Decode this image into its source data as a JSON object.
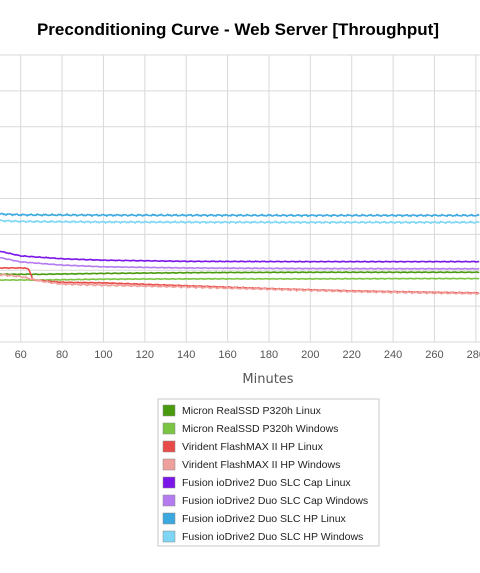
{
  "chart_data": {
    "type": "line",
    "title": "Preconditioning Curve - Web Server [Throughput]",
    "xlabel": "Minutes",
    "ylabel": "",
    "x_tick_labels": [
      "60",
      "80",
      "100",
      "120",
      "140",
      "160",
      "180",
      "200",
      "220",
      "240",
      "260",
      "280"
    ],
    "xlim": [
      50,
      282
    ],
    "ylim": [
      0,
      100
    ],
    "grid": true,
    "legend_position": "bottom",
    "series": [
      {
        "name": "Micron RealSSD P320h Linux",
        "color": "#4a9a10",
        "points": [
          [
            50,
            23.6
          ],
          [
            70,
            23.6
          ],
          [
            100,
            23.9
          ],
          [
            150,
            24.2
          ],
          [
            200,
            24.3
          ],
          [
            250,
            24.3
          ],
          [
            282,
            24.3
          ]
        ]
      },
      {
        "name": "Micron RealSSD P320h Windows",
        "color": "#7cc544",
        "points": [
          [
            50,
            21.6
          ],
          [
            70,
            21.6
          ],
          [
            100,
            21.9
          ],
          [
            150,
            22.0
          ],
          [
            200,
            22.0
          ],
          [
            250,
            22.1
          ],
          [
            282,
            22.1
          ]
        ]
      },
      {
        "name": "Virident FlashMAX II HP Linux",
        "color": "#e84c48",
        "points": [
          [
            50,
            25.8
          ],
          [
            62,
            25.8
          ],
          [
            64,
            25.3
          ],
          [
            66,
            21.6
          ],
          [
            80,
            20.8
          ],
          [
            100,
            20.6
          ],
          [
            140,
            19.6
          ],
          [
            180,
            18.6
          ],
          [
            220,
            17.8
          ],
          [
            260,
            17.3
          ],
          [
            282,
            17.1
          ]
        ]
      },
      {
        "name": "Virident FlashMAX II HP Windows",
        "color": "#f0a09c",
        "points": [
          [
            50,
            23.5
          ],
          [
            60,
            22.8
          ],
          [
            70,
            21.2
          ],
          [
            80,
            20.2
          ],
          [
            100,
            19.8
          ],
          [
            140,
            19.2
          ],
          [
            180,
            18.4
          ],
          [
            220,
            17.6
          ],
          [
            260,
            17.1
          ],
          [
            282,
            16.9
          ]
        ]
      },
      {
        "name": "Fusion ioDrive2 Duo SLC Cap Linux",
        "color": "#7a16e8",
        "points": [
          [
            50,
            31.6
          ],
          [
            60,
            30.0
          ],
          [
            80,
            29.0
          ],
          [
            100,
            28.5
          ],
          [
            140,
            28.1
          ],
          [
            200,
            28.0
          ],
          [
            282,
            28.0
          ]
        ]
      },
      {
        "name": "Fusion ioDrive2 Duo SLC Cap Windows",
        "color": "#b57cf0",
        "points": [
          [
            50,
            29.4
          ],
          [
            60,
            27.9
          ],
          [
            80,
            26.8
          ],
          [
            100,
            26.2
          ],
          [
            140,
            25.8
          ],
          [
            200,
            25.6
          ],
          [
            282,
            25.5
          ]
        ]
      },
      {
        "name": "Fusion ioDrive2 Duo SLC HP Linux",
        "color": "#3ba9e0",
        "points": [
          [
            50,
            44.6
          ],
          [
            60,
            44.3
          ],
          [
            100,
            44.2
          ],
          [
            200,
            44.1
          ],
          [
            282,
            44.1
          ]
        ]
      },
      {
        "name": "Fusion ioDrive2 Duo SLC HP Windows",
        "color": "#7ed6f4",
        "points": [
          [
            50,
            42.3
          ],
          [
            60,
            42.0
          ],
          [
            100,
            41.8
          ],
          [
            200,
            41.7
          ],
          [
            282,
            41.7
          ]
        ]
      }
    ]
  }
}
